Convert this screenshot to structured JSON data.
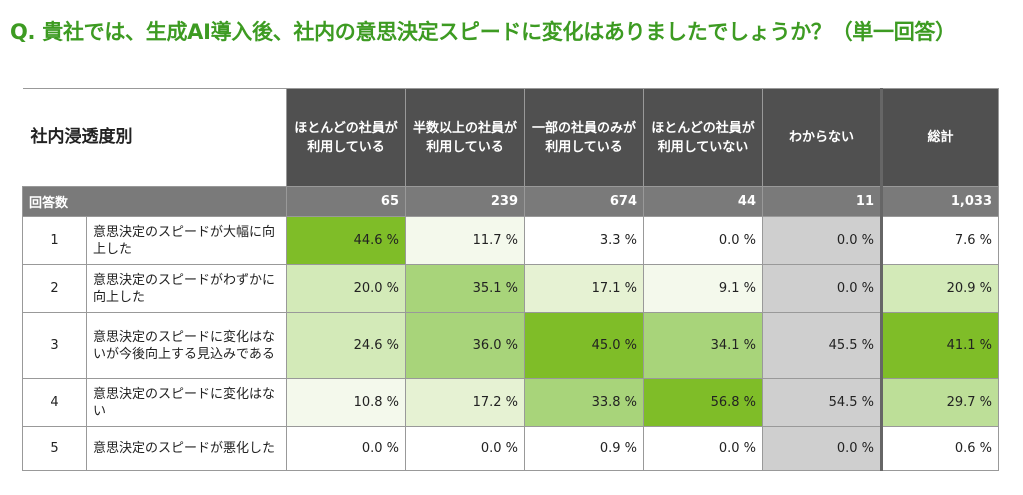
{
  "title": "Q. 貴社では、生成AI導入後、社内の意思決定スピードに変化はありましたでしょうか？（単一回答）",
  "corner_label": "社内浸透度別",
  "count_label": "回答数",
  "colors": {
    "title": "#3d9b22",
    "header_bg": "#505050",
    "count_bg": "#7a7a7a",
    "unknown_bg": "#cfcfcf",
    "scale": [
      "#ffffff",
      "#f4f9ec",
      "#e6f2d3",
      "#d3eab8",
      "#bddf98",
      "#a8d47a",
      "#7fbd28"
    ]
  },
  "chart_data": {
    "type": "table",
    "title": "Q. 貴社では、生成AI導入後、社内の意思決定スピードに変化はありましたでしょうか？（単一回答）",
    "columns": [
      {
        "label": "ほとんどの社員が利用している",
        "n": "65"
      },
      {
        "label": "半数以上の社員が利用している",
        "n": "239"
      },
      {
        "label": "一部の社員のみが利用している",
        "n": "674"
      },
      {
        "label": "ほとんどの社員が利用していない",
        "n": "44"
      },
      {
        "label": "わからない",
        "n": "11"
      },
      {
        "label": "総計",
        "n": "1,033"
      }
    ],
    "rows": [
      {
        "num": "1",
        "label": "意思決定のスピードが大幅に向上した",
        "values": [
          44.6,
          11.7,
          3.3,
          0.0,
          0.0,
          7.6
        ]
      },
      {
        "num": "2",
        "label": "意思決定のスピードがわずかに向上した",
        "values": [
          20.0,
          35.1,
          17.1,
          9.1,
          0.0,
          20.9
        ]
      },
      {
        "num": "3",
        "label": "意思決定のスピードに変化はないが今後向上する見込みである",
        "values": [
          24.6,
          36.0,
          45.0,
          34.1,
          45.5,
          41.1
        ]
      },
      {
        "num": "4",
        "label": "意思決定のスピードに変化はない",
        "values": [
          10.8,
          17.2,
          33.8,
          56.8,
          54.5,
          29.7
        ]
      },
      {
        "num": "5",
        "label": "意思決定のスピードが悪化した",
        "values": [
          0.0,
          0.0,
          0.9,
          0.0,
          0.0,
          0.6
        ]
      }
    ],
    "unit": "%"
  }
}
